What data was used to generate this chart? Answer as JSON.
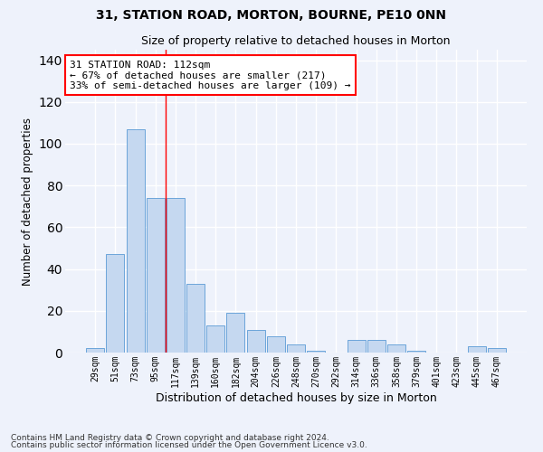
{
  "title": "31, STATION ROAD, MORTON, BOURNE, PE10 0NN",
  "subtitle": "Size of property relative to detached houses in Morton",
  "xlabel": "Distribution of detached houses by size in Morton",
  "ylabel": "Number of detached properties",
  "categories": [
    "29sqm",
    "51sqm",
    "73sqm",
    "95sqm",
    "117sqm",
    "139sqm",
    "160sqm",
    "182sqm",
    "204sqm",
    "226sqm",
    "248sqm",
    "270sqm",
    "292sqm",
    "314sqm",
    "336sqm",
    "358sqm",
    "379sqm",
    "401sqm",
    "423sqm",
    "445sqm",
    "467sqm"
  ],
  "values": [
    2,
    47,
    107,
    74,
    74,
    33,
    13,
    19,
    11,
    8,
    4,
    1,
    0,
    6,
    6,
    4,
    1,
    0,
    0,
    3,
    2
  ],
  "bar_color": "#c5d8f0",
  "bar_edge_color": "#5b9bd5",
  "background_color": "#eef2fb",
  "grid_color": "#ffffff",
  "ylim": [
    0,
    145
  ],
  "yticks": [
    0,
    20,
    40,
    60,
    80,
    100,
    120,
    140
  ],
  "property_line_x": 3.5,
  "annotation_title": "31 STATION ROAD: 112sqm",
  "annotation_line1": "← 67% of detached houses are smaller (217)",
  "annotation_line2": "33% of semi-detached houses are larger (109) →",
  "footnote1": "Contains HM Land Registry data © Crown copyright and database right 2024.",
  "footnote2": "Contains public sector information licensed under the Open Government Licence v3.0.",
  "title_fontsize": 10,
  "subtitle_fontsize": 9,
  "annotation_fontsize": 8,
  "ylabel_fontsize": 8.5,
  "xlabel_fontsize": 9,
  "tick_fontsize": 7,
  "footnote_fontsize": 6.5
}
